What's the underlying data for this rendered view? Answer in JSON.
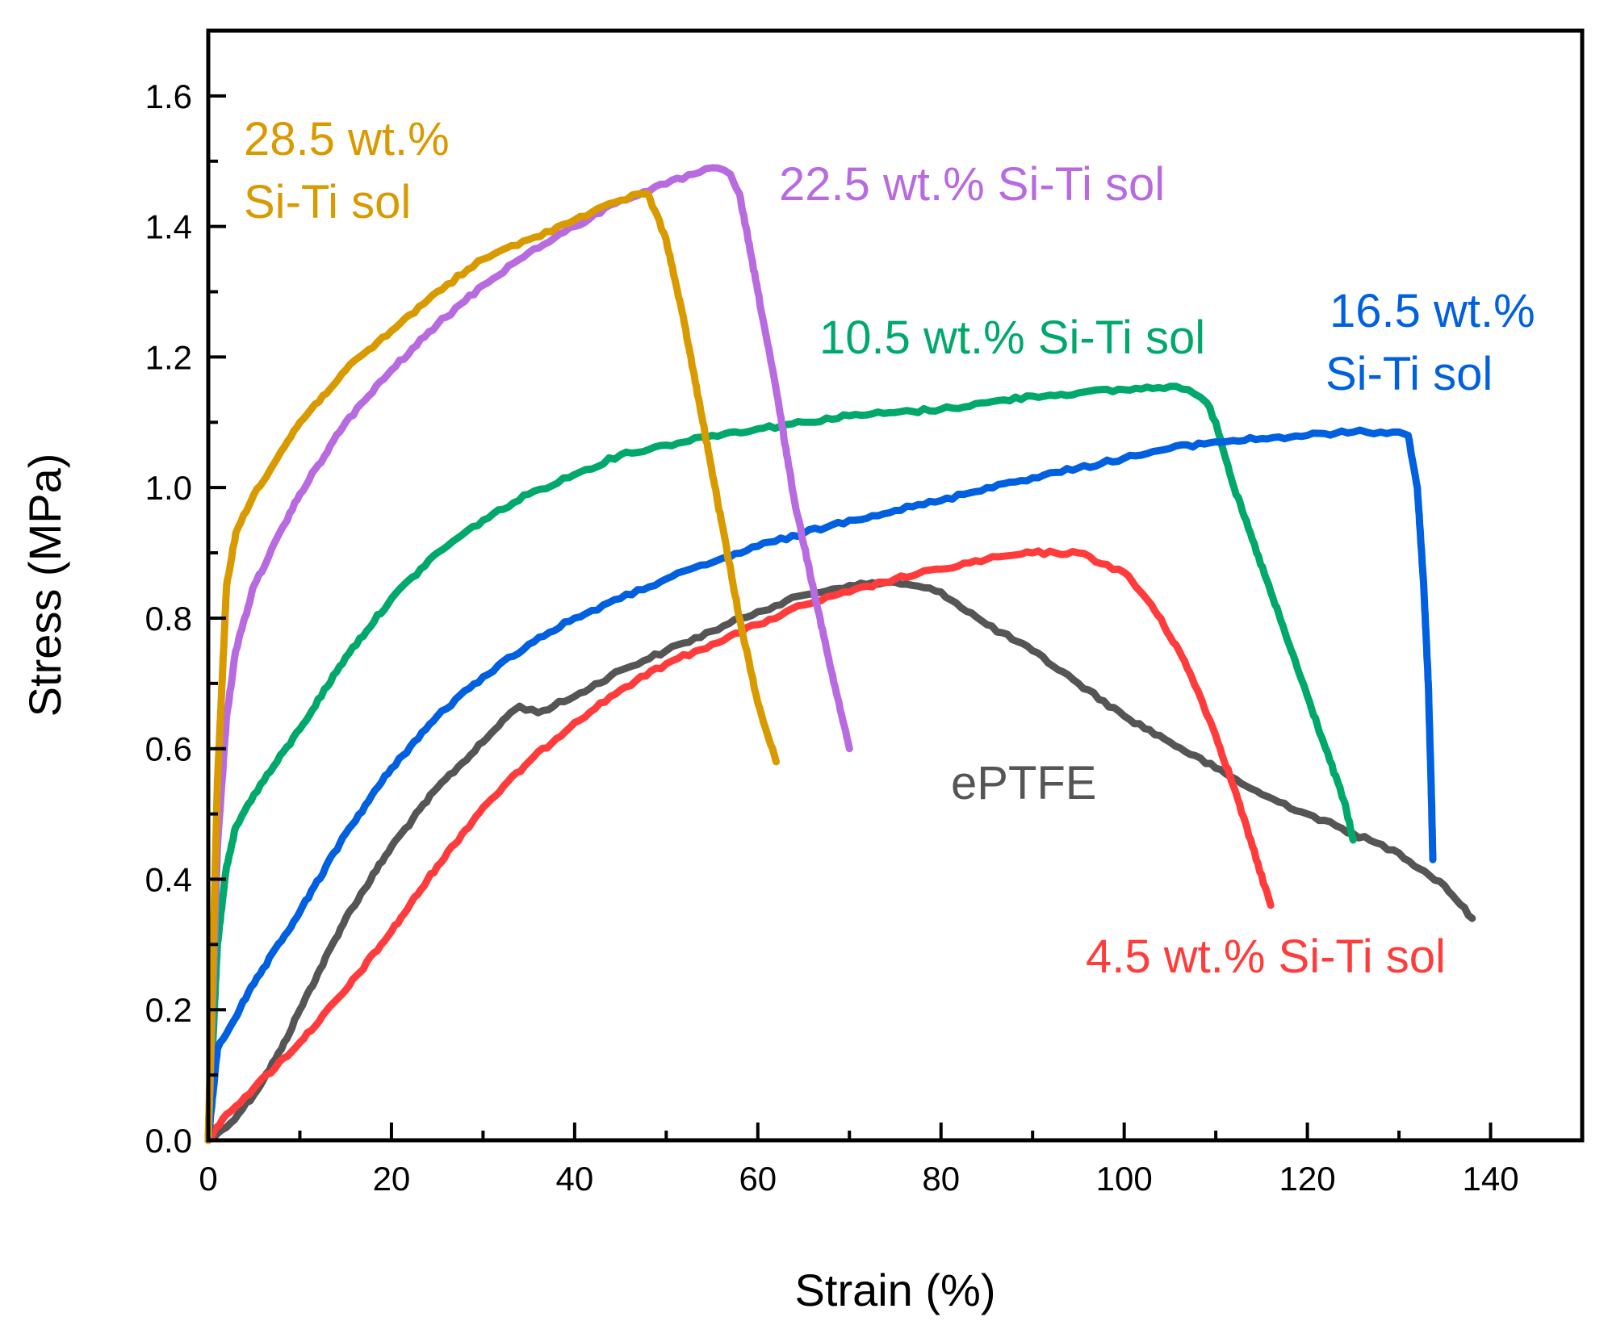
{
  "chart_data": {
    "type": "line",
    "title": "",
    "xlabel": "Strain (%)",
    "ylabel": "Stress (MPa)",
    "xlim": [
      0,
      150
    ],
    "ylim": [
      0,
      1.7
    ],
    "xticks": [
      0,
      20,
      40,
      60,
      80,
      100,
      120,
      140
    ],
    "xtick_labels": [
      "0",
      "20",
      "40",
      "60",
      "80",
      "100",
      "120",
      "140"
    ],
    "yticks": [
      0,
      0.2,
      0.4,
      0.6,
      0.8,
      1.0,
      1.2,
      1.4,
      1.6
    ],
    "ytick_labels": [
      "0.0",
      "0.2",
      "0.4",
      "0.6",
      "0.8",
      "1.0",
      "1.2",
      "1.4",
      "1.6"
    ],
    "grid": false,
    "legend": "inline labels",
    "series": [
      {
        "name": "ePTFE",
        "label_lines": [
          "ePTFE"
        ],
        "color": "#555555",
        "x": [
          0,
          2,
          5,
          8,
          10,
          15,
          20,
          25,
          30,
          33,
          34,
          36,
          40,
          45,
          50,
          55,
          60,
          65,
          70,
          75,
          80,
          85,
          90,
          95,
          100,
          105,
          110,
          115,
          120,
          125,
          130,
          135,
          138
        ],
        "y": [
          0,
          0.02,
          0.07,
          0.14,
          0.2,
          0.34,
          0.45,
          0.54,
          0.61,
          0.655,
          0.665,
          0.655,
          0.68,
          0.72,
          0.75,
          0.78,
          0.81,
          0.835,
          0.85,
          0.855,
          0.84,
          0.79,
          0.75,
          0.7,
          0.65,
          0.61,
          0.57,
          0.53,
          0.5,
          0.47,
          0.44,
          0.39,
          0.34
        ]
      },
      {
        "name": "4.5 wt.% Si-Ti sol",
        "label_lines": [
          "4.5 wt.% Si-Ti sol"
        ],
        "color": "#ff3b3b",
        "x": [
          0,
          2,
          5,
          10,
          15,
          20,
          25,
          30,
          35,
          40,
          45,
          50,
          55,
          60,
          65,
          70,
          75,
          80,
          85,
          90,
          95,
          100,
          103,
          106,
          108,
          110,
          112,
          114,
          116
        ],
        "y": [
          0,
          0.04,
          0.08,
          0.15,
          0.23,
          0.32,
          0.42,
          0.51,
          0.58,
          0.64,
          0.69,
          0.73,
          0.76,
          0.79,
          0.82,
          0.84,
          0.86,
          0.875,
          0.89,
          0.9,
          0.9,
          0.87,
          0.82,
          0.75,
          0.69,
          0.62,
          0.54,
          0.45,
          0.36
        ]
      },
      {
        "name": "10.5 wt.% Si-Ti sol",
        "label_lines": [
          "10.5 wt.% Si-Ti sol"
        ],
        "color": "#00a86b",
        "x": [
          0,
          1,
          2,
          3,
          5,
          10,
          15,
          20,
          25,
          30,
          35,
          40,
          45,
          50,
          55,
          60,
          65,
          70,
          75,
          80,
          85,
          90,
          95,
          100,
          105,
          107,
          109,
          110,
          112,
          114,
          116,
          118,
          120,
          122,
          124,
          125
        ],
        "y": [
          0,
          0.3,
          0.42,
          0.48,
          0.53,
          0.63,
          0.74,
          0.83,
          0.9,
          0.95,
          0.99,
          1.02,
          1.05,
          1.065,
          1.08,
          1.09,
          1.1,
          1.11,
          1.115,
          1.12,
          1.13,
          1.14,
          1.145,
          1.15,
          1.155,
          1.15,
          1.13,
          1.1,
          1.0,
          0.92,
          0.84,
          0.76,
          0.68,
          0.6,
          0.52,
          0.46
        ]
      },
      {
        "name": "16.5 wt.% Si-Ti sol",
        "label_lines": [
          "16.5 wt.% ",
          "Si-Ti sol"
        ],
        "color": "#0060e0",
        "x": [
          0,
          1,
          5,
          10,
          15,
          20,
          25,
          30,
          35,
          40,
          45,
          50,
          55,
          60,
          65,
          70,
          75,
          80,
          85,
          90,
          95,
          100,
          105,
          110,
          115,
          120,
          125,
          128,
          130,
          131,
          132,
          132.7,
          133.2,
          133.5,
          133.7
        ],
        "y": [
          0,
          0.14,
          0.24,
          0.35,
          0.47,
          0.57,
          0.65,
          0.71,
          0.76,
          0.8,
          0.83,
          0.86,
          0.885,
          0.91,
          0.93,
          0.95,
          0.965,
          0.98,
          1.0,
          1.015,
          1.03,
          1.045,
          1.06,
          1.07,
          1.075,
          1.08,
          1.085,
          1.085,
          1.085,
          1.08,
          1.0,
          0.85,
          0.7,
          0.55,
          0.43
        ]
      },
      {
        "name": "22.5 wt.% Si-Ti sol",
        "label_lines": [
          "22.5 wt.% Si-Ti sol"
        ],
        "color": "#b86be0",
        "x": [
          0,
          1,
          2,
          3,
          5,
          10,
          15,
          20,
          25,
          30,
          35,
          40,
          45,
          50,
          53,
          55,
          57,
          58,
          60,
          62,
          64,
          66,
          68,
          70
        ],
        "y": [
          0,
          0.45,
          0.65,
          0.75,
          0.85,
          0.99,
          1.1,
          1.18,
          1.25,
          1.31,
          1.36,
          1.4,
          1.44,
          1.465,
          1.48,
          1.49,
          1.48,
          1.45,
          1.3,
          1.15,
          0.98,
          0.85,
          0.72,
          0.6
        ]
      },
      {
        "name": "28.5 wt.% Si-Ti sol",
        "label_lines": [
          "28.5 wt.% ",
          "Si-Ti sol"
        ],
        "color": "#d99a00",
        "x": [
          0,
          1,
          2,
          3,
          5,
          10,
          15,
          20,
          25,
          30,
          35,
          40,
          45,
          47,
          48,
          50,
          52,
          54,
          56,
          58,
          60,
          62
        ],
        "y": [
          0,
          0.55,
          0.85,
          0.93,
          0.99,
          1.1,
          1.18,
          1.24,
          1.3,
          1.35,
          1.38,
          1.41,
          1.44,
          1.45,
          1.45,
          1.38,
          1.25,
          1.1,
          0.95,
          0.8,
          0.67,
          0.58
        ]
      }
    ]
  }
}
